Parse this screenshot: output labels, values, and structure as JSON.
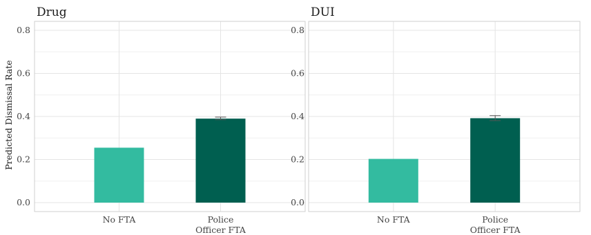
{
  "chart_data": {
    "type": "bar",
    "ylabel": "Predicted Dismissal Rate",
    "ylim": [
      0,
      0.85
    ],
    "yticks": [
      "0.0",
      "0.2",
      "0.4",
      "0.6",
      "0.8"
    ],
    "categories": [
      "No FTA",
      "Police\nOfficer FTA"
    ],
    "grid": true,
    "panels": [
      {
        "title": "Drug",
        "values": [
          0.255,
          0.39
        ],
        "error_bars": [
          null,
          [
            0.385,
            0.397
          ]
        ],
        "colors": [
          "#33BBA0",
          "#005F50"
        ]
      },
      {
        "title": "DUI",
        "values": [
          0.203,
          0.392
        ],
        "error_bars": [
          null,
          [
            0.381,
            0.404
          ]
        ],
        "colors": [
          "#33BBA0",
          "#005F50"
        ]
      }
    ]
  }
}
